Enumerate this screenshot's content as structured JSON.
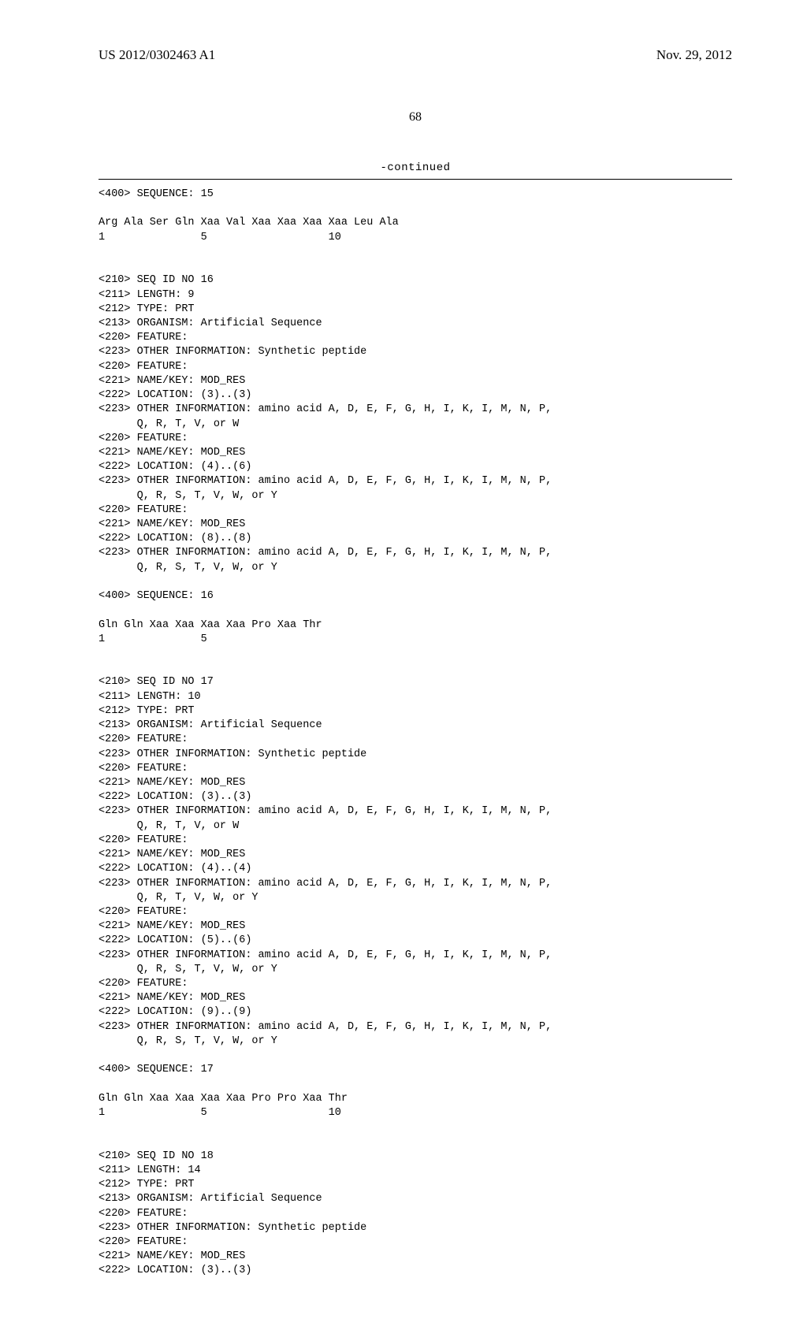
{
  "header": {
    "pubnum": "US 2012/0302463 A1",
    "date": "Nov. 29, 2012"
  },
  "pagenum": "68",
  "continued_label": "-continued",
  "seq15": {
    "tag": "<400> SEQUENCE: 15",
    "seq": "Arg Ala Ser Gln Xaa Val Xaa Xaa Xaa Xaa Leu Ala",
    "idx": "1               5                   10"
  },
  "seq16": {
    "l1": "<210> SEQ ID NO 16",
    "l2": "<211> LENGTH: 9",
    "l3": "<212> TYPE: PRT",
    "l4": "<213> ORGANISM: Artificial Sequence",
    "l5": "<220> FEATURE:",
    "l6": "<223> OTHER INFORMATION: Synthetic peptide",
    "l7": "<220> FEATURE:",
    "l8": "<221> NAME/KEY: MOD_RES",
    "l9": "<222> LOCATION: (3)..(3)",
    "l10": "<223> OTHER INFORMATION: amino acid A, D, E, F, G, H, I, K, I, M, N, P,",
    "l10b": "      Q, R, T, V, or W",
    "l11": "<220> FEATURE:",
    "l12": "<221> NAME/KEY: MOD_RES",
    "l13": "<222> LOCATION: (4)..(6)",
    "l14": "<223> OTHER INFORMATION: amino acid A, D, E, F, G, H, I, K, I, M, N, P,",
    "l14b": "      Q, R, S, T, V, W, or Y",
    "l15": "<220> FEATURE:",
    "l16": "<221> NAME/KEY: MOD_RES",
    "l17": "<222> LOCATION: (8)..(8)",
    "l18": "<223> OTHER INFORMATION: amino acid A, D, E, F, G, H, I, K, I, M, N, P,",
    "l18b": "      Q, R, S, T, V, W, or Y",
    "tag": "<400> SEQUENCE: 16",
    "seq": "Gln Gln Xaa Xaa Xaa Xaa Pro Xaa Thr",
    "idx": "1               5"
  },
  "seq17": {
    "l1": "<210> SEQ ID NO 17",
    "l2": "<211> LENGTH: 10",
    "l3": "<212> TYPE: PRT",
    "l4": "<213> ORGANISM: Artificial Sequence",
    "l5": "<220> FEATURE:",
    "l6": "<223> OTHER INFORMATION: Synthetic peptide",
    "l7": "<220> FEATURE:",
    "l8": "<221> NAME/KEY: MOD_RES",
    "l9": "<222> LOCATION: (3)..(3)",
    "l10": "<223> OTHER INFORMATION: amino acid A, D, E, F, G, H, I, K, I, M, N, P,",
    "l10b": "      Q, R, T, V, or W",
    "l11": "<220> FEATURE:",
    "l12": "<221> NAME/KEY: MOD_RES",
    "l13": "<222> LOCATION: (4)..(4)",
    "l14": "<223> OTHER INFORMATION: amino acid A, D, E, F, G, H, I, K, I, M, N, P,",
    "l14b": "      Q, R, T, V, W, or Y",
    "l15": "<220> FEATURE:",
    "l16": "<221> NAME/KEY: MOD_RES",
    "l17": "<222> LOCATION: (5)..(6)",
    "l18": "<223> OTHER INFORMATION: amino acid A, D, E, F, G, H, I, K, I, M, N, P,",
    "l18b": "      Q, R, S, T, V, W, or Y",
    "l19": "<220> FEATURE:",
    "l20": "<221> NAME/KEY: MOD_RES",
    "l21": "<222> LOCATION: (9)..(9)",
    "l22": "<223> OTHER INFORMATION: amino acid A, D, E, F, G, H, I, K, I, M, N, P,",
    "l22b": "      Q, R, S, T, V, W, or Y",
    "tag": "<400> SEQUENCE: 17",
    "seq": "Gln Gln Xaa Xaa Xaa Xaa Pro Pro Xaa Thr",
    "idx": "1               5                   10"
  },
  "seq18": {
    "l1": "<210> SEQ ID NO 18",
    "l2": "<211> LENGTH: 14",
    "l3": "<212> TYPE: PRT",
    "l4": "<213> ORGANISM: Artificial Sequence",
    "l5": "<220> FEATURE:",
    "l6": "<223> OTHER INFORMATION: Synthetic peptide",
    "l7": "<220> FEATURE:",
    "l8": "<221> NAME/KEY: MOD_RES",
    "l9": "<222> LOCATION: (3)..(3)"
  }
}
